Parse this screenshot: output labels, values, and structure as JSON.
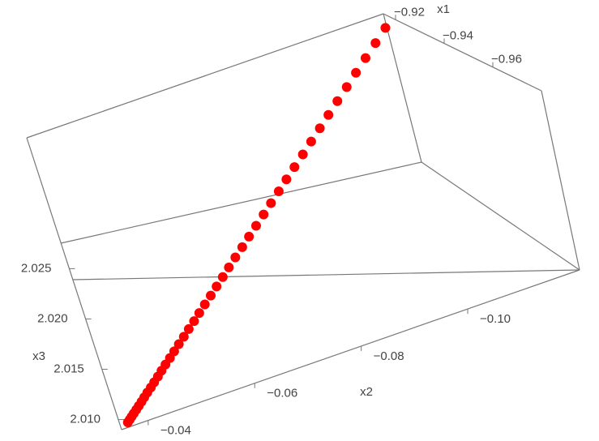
{
  "chart_data": {
    "type": "scatter3d",
    "x1_label": "x1",
    "x2_label": "x2",
    "x3_label": "x3",
    "x1lim": [
      -0.98,
      -0.915
    ],
    "x2lim": [
      -0.121,
      -0.035
    ],
    "x3lim": [
      2.009,
      2.038
    ],
    "x1ticks": [
      {
        "value": -0.92,
        "label": "−0.92"
      },
      {
        "value": -0.94,
        "label": "−0.94"
      },
      {
        "value": -0.96,
        "label": "−0.96"
      }
    ],
    "x2ticks": [
      {
        "value": -0.04,
        "label": "−0.04"
      },
      {
        "value": -0.06,
        "label": "−0.06"
      },
      {
        "value": -0.08,
        "label": "−0.08"
      },
      {
        "value": -0.1,
        "label": "−0.10"
      }
    ],
    "x3ticks": [
      {
        "value": 2.01,
        "label": "2.010"
      },
      2.015,
      {
        "value": 2.02,
        "label": "2.020"
      },
      2.025
    ],
    "series": [
      {
        "color": "#ff0000",
        "x1": [
          -0.92,
          -0.92,
          -0.92,
          -0.92,
          -0.92,
          -0.92,
          -0.92,
          -0.92,
          -0.92,
          -0.92,
          -0.92,
          -0.92,
          -0.92,
          -0.92,
          -0.92,
          -0.92,
          -0.92,
          -0.92,
          -0.92,
          -0.92,
          -0.92,
          -0.92,
          -0.92,
          -0.92,
          -0.92,
          -0.92,
          -0.92,
          -0.92,
          -0.92,
          -0.92,
          -0.92,
          -0.92,
          -0.92,
          -0.92,
          -0.92,
          -0.92,
          -0.92,
          -0.92,
          -0.92,
          -0.92,
          -0.92,
          -0.92,
          -0.92,
          -0.92,
          -0.92
        ],
        "x2": [
          -0.0352,
          -0.0358,
          -0.0364,
          -0.0371,
          -0.0379,
          -0.0387,
          -0.0396,
          -0.0405,
          -0.0415,
          -0.0426,
          -0.0437,
          -0.0449,
          -0.0461,
          -0.0474,
          -0.0488,
          -0.0502,
          -0.0517,
          -0.0533,
          -0.0549,
          -0.0566,
          -0.0583,
          -0.0601,
          -0.062,
          -0.0639,
          -0.0659,
          -0.0679,
          -0.07,
          -0.0722,
          -0.0744,
          -0.0767,
          -0.0791,
          -0.0815,
          -0.084,
          -0.0865,
          -0.0891,
          -0.0918,
          -0.0945,
          -0.0973,
          -0.1001,
          -0.103,
          -0.106,
          -0.109,
          -0.1121,
          -0.1153,
          -0.1185
        ],
        "x3": [
          2.01036,
          2.01055,
          2.01075,
          2.01098,
          2.01123,
          2.01149,
          2.01178,
          2.01209,
          2.01242,
          2.01276,
          2.01313,
          2.01352,
          2.01393,
          2.01436,
          2.0148,
          2.01527,
          2.01576,
          2.01627,
          2.0168,
          2.01734,
          2.01791,
          2.0185,
          2.01911,
          2.01974,
          2.02039,
          2.02106,
          2.02175,
          2.02245,
          2.02318,
          2.02393,
          2.0247,
          2.02549,
          2.0263,
          2.02713,
          2.02798,
          2.02885,
          2.02974,
          2.03065,
          2.03158,
          2.03253,
          2.0335,
          2.03449,
          2.0355,
          2.03653,
          2.03758
        ]
      }
    ]
  }
}
